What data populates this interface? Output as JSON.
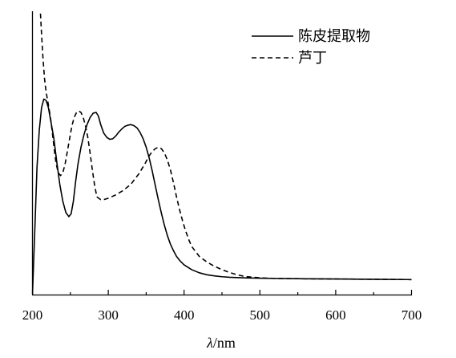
{
  "chart_data": {
    "type": "line",
    "title": "",
    "xlabel": "λ/nm",
    "xlabel_italic_part": "λ",
    "xlabel_rest": "/nm",
    "ylabel": "",
    "xlim": [
      200,
      700
    ],
    "ylim": [
      0,
      1
    ],
    "x_ticks": [
      200,
      300,
      400,
      500,
      600,
      700
    ],
    "x_minor_ticks": [
      250,
      350,
      450,
      550,
      650
    ],
    "y_ticks": [],
    "grid": false,
    "legend_position": "top-right",
    "series": [
      {
        "name": "陈皮提取物",
        "line_style": "solid",
        "x": [
          200,
          203,
          206,
          209,
          212,
          215,
          218,
          221,
          224,
          228,
          232,
          236,
          240,
          244,
          248,
          251,
          254,
          257,
          260,
          264,
          268,
          272,
          276,
          280,
          284,
          287,
          290,
          294,
          298,
          302,
          306,
          310,
          314,
          318,
          322,
          326,
          330,
          334,
          338,
          342,
          346,
          350,
          354,
          358,
          362,
          366,
          370,
          374,
          378,
          382,
          386,
          390,
          395,
          400,
          410,
          420,
          430,
          440,
          450,
          460,
          470,
          480,
          500,
          520,
          550,
          600,
          650,
          700
        ],
        "y": [
          0.0,
          0.22,
          0.45,
          0.58,
          0.66,
          0.69,
          0.685,
          0.66,
          0.615,
          0.555,
          0.47,
          0.39,
          0.33,
          0.29,
          0.275,
          0.285,
          0.33,
          0.4,
          0.46,
          0.52,
          0.565,
          0.6,
          0.625,
          0.64,
          0.643,
          0.63,
          0.6,
          0.57,
          0.555,
          0.548,
          0.55,
          0.56,
          0.574,
          0.585,
          0.594,
          0.598,
          0.6,
          0.596,
          0.588,
          0.572,
          0.55,
          0.52,
          0.482,
          0.436,
          0.385,
          0.335,
          0.288,
          0.245,
          0.208,
          0.178,
          0.155,
          0.135,
          0.118,
          0.105,
          0.088,
          0.077,
          0.07,
          0.066,
          0.063,
          0.061,
          0.06,
          0.059,
          0.058,
          0.057,
          0.056,
          0.055,
          0.054,
          0.053
        ]
      },
      {
        "name": "芦丁",
        "line_style": "dashed",
        "x": [
          210,
          212,
          214,
          216,
          218,
          220,
          222,
          225,
          228,
          231,
          234,
          237,
          240,
          243,
          246,
          249,
          252,
          255,
          258,
          261,
          264,
          267,
          270,
          273,
          276,
          279,
          282,
          285,
          290,
          295,
          300,
          310,
          320,
          330,
          340,
          348,
          354,
          358,
          362,
          366,
          370,
          374,
          378,
          382,
          386,
          390,
          394,
          398,
          402,
          406,
          410,
          420,
          430,
          440,
          450,
          460,
          470,
          480,
          500,
          520,
          550,
          600,
          650,
          700
        ],
        "y": [
          1.02,
          0.92,
          0.83,
          0.76,
          0.715,
          0.685,
          0.655,
          0.6,
          0.53,
          0.465,
          0.43,
          0.42,
          0.43,
          0.46,
          0.505,
          0.55,
          0.595,
          0.625,
          0.642,
          0.648,
          0.643,
          0.625,
          0.595,
          0.555,
          0.5,
          0.44,
          0.385,
          0.345,
          0.335,
          0.336,
          0.34,
          0.352,
          0.368,
          0.39,
          0.425,
          0.46,
          0.49,
          0.505,
          0.515,
          0.52,
          0.515,
          0.5,
          0.475,
          0.44,
          0.395,
          0.345,
          0.3,
          0.26,
          0.225,
          0.195,
          0.17,
          0.135,
          0.115,
          0.1,
          0.088,
          0.078,
          0.07,
          0.064,
          0.059,
          0.057,
          0.056,
          0.055,
          0.054,
          0.053
        ]
      }
    ]
  }
}
